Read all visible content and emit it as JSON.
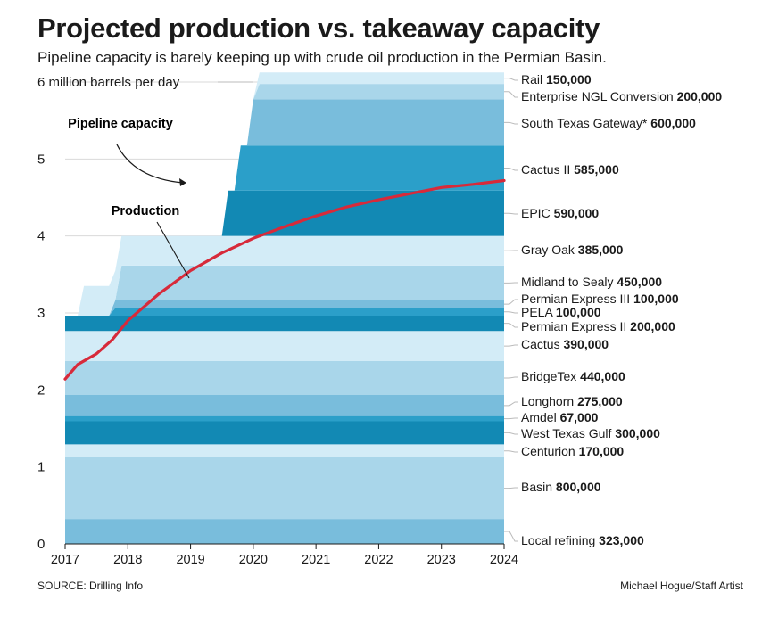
{
  "title": "Projected production vs. takeaway capacity",
  "subtitle": "Pipeline capacity is barely keeping up with crude oil production in the Permian Basin.",
  "source": "SOURCE: Drilling Info",
  "credit": "Michael Hogue/Staff Artist",
  "chart_data": {
    "type": "area",
    "title": "Projected production vs. takeaway capacity",
    "ylabel": "6 million barrels per day",
    "y_ticks": [
      "6 million barrels per day",
      "5",
      "4",
      "3",
      "2",
      "1",
      "0"
    ],
    "x_ticks": [
      "2017",
      "2018",
      "2019",
      "2020",
      "2021",
      "2022",
      "2023",
      "2024"
    ],
    "xlim": [
      2017,
      2024
    ],
    "ylim": [
      0,
      6
    ],
    "grid": true,
    "units_label": "barrels per day",
    "annotations": [
      "Pipeline capacity",
      "Production"
    ],
    "colors": {
      "dark": "#1289b4",
      "mid_dark": "#2b9fc9",
      "mid": "#79bddc",
      "light": "#a9d6ea",
      "pale": "#d3ecf7",
      "production_line": "#d72a3a"
    },
    "layers": [
      {
        "name": "Local refining",
        "value": "323,000",
        "start": 2017,
        "color": "#79bddc"
      },
      {
        "name": "Basin",
        "value": "800,000",
        "start": 2017,
        "color": "#a9d6ea"
      },
      {
        "name": "Centurion",
        "value": "170,000",
        "start": 2017,
        "color": "#d3ecf7"
      },
      {
        "name": "West Texas Gulf",
        "value": "300,000",
        "start": 2017,
        "color": "#1289b4"
      },
      {
        "name": "Amdel",
        "value": "67,000",
        "start": 2017,
        "color": "#2b9fc9"
      },
      {
        "name": "Longhorn",
        "value": "275,000",
        "start": 2017,
        "color": "#79bddc"
      },
      {
        "name": "BridgeTex",
        "value": "440,000",
        "start": 2017,
        "color": "#a9d6ea"
      },
      {
        "name": "Cactus",
        "value": "390,000",
        "start": 2017,
        "color": "#d3ecf7"
      },
      {
        "name": "Permian Express II",
        "value": "200,000",
        "start": 2017,
        "color": "#1289b4"
      },
      {
        "name": "PELA",
        "value": "100,000",
        "start": 2017.7,
        "color": "#2b9fc9"
      },
      {
        "name": "Permian Express III",
        "value": "100,000",
        "start": 2017.7,
        "color": "#79bddc"
      },
      {
        "name": "Midland to Sealy",
        "value": "450,000",
        "start": 2017.8,
        "color": "#a9d6ea"
      },
      {
        "name": "Gray Oak",
        "value": "385,000",
        "start": 2017.2,
        "color": "#d3ecf7"
      },
      {
        "name": "EPIC",
        "value": "590,000",
        "start": 2019.5,
        "color": "#1289b4"
      },
      {
        "name": "Cactus II",
        "value": "585,000",
        "start": 2019.7,
        "color": "#2b9fc9"
      },
      {
        "name": "South Texas Gateway*",
        "value": "600,000",
        "start": 2019.9,
        "color": "#79bddc"
      },
      {
        "name": "Enterprise NGL Conversion",
        "value": "200,000",
        "start": 2020.0,
        "color": "#a9d6ea"
      },
      {
        "name": "Rail",
        "value": "150,000",
        "start": 2020.0,
        "color": "#d3ecf7"
      }
    ],
    "production": {
      "x": [
        2017.0,
        2017.2,
        2017.5,
        2017.75,
        2018.0,
        2018.5,
        2019.0,
        2019.5,
        2020.0,
        2020.5,
        2021.0,
        2021.5,
        2022.0,
        2022.5,
        2023.0,
        2023.5,
        2024.0
      ],
      "y": [
        2.14,
        2.33,
        2.47,
        2.65,
        2.9,
        3.25,
        3.55,
        3.78,
        3.97,
        4.12,
        4.26,
        4.38,
        4.47,
        4.55,
        4.63,
        4.67,
        4.72
      ]
    }
  }
}
